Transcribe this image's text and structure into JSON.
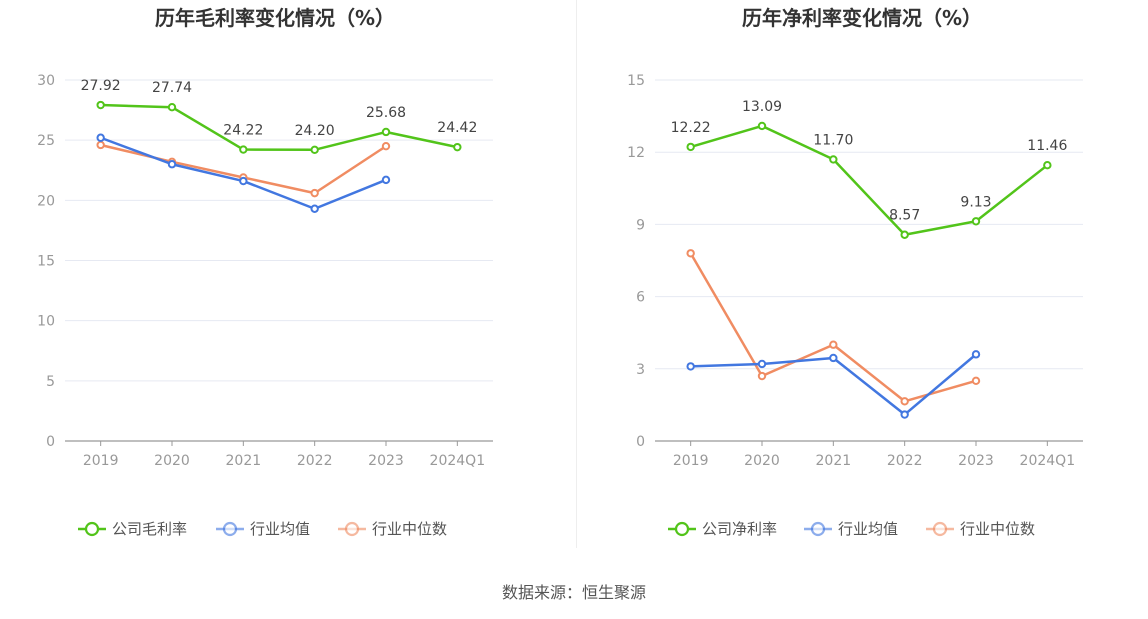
{
  "charts": [
    {
      "title": "历年毛利率变化情况（%）",
      "categories": [
        "2019",
        "2020",
        "2021",
        "2022",
        "2023",
        "2024Q1"
      ],
      "ylim": [
        0,
        30
      ],
      "yticks": [
        0,
        5,
        10,
        15,
        20,
        25,
        30
      ],
      "series": [
        {
          "name": "公司毛利率",
          "color": "#52c41a",
          "values": [
            27.92,
            27.74,
            24.22,
            24.2,
            25.68,
            24.42
          ],
          "labels": [
            "27.92",
            "27.74",
            "24.22",
            "24.20",
            "25.68",
            "24.42"
          ]
        },
        {
          "name": "行业均值",
          "color": "#4277e0",
          "values": [
            25.2,
            23.0,
            21.6,
            19.3,
            21.7,
            null
          ]
        },
        {
          "name": "行业中位数",
          "color": "#f08c62",
          "values": [
            24.6,
            23.2,
            21.9,
            20.6,
            24.5,
            null
          ]
        }
      ]
    },
    {
      "title": "历年净利率变化情况（%）",
      "categories": [
        "2019",
        "2020",
        "2021",
        "2022",
        "2023",
        "2024Q1"
      ],
      "ylim": [
        0,
        15
      ],
      "yticks": [
        0,
        3,
        6,
        9,
        12,
        15
      ],
      "series": [
        {
          "name": "公司净利率",
          "color": "#52c41a",
          "values": [
            12.22,
            13.09,
            11.7,
            8.57,
            9.13,
            11.46
          ],
          "labels": [
            "12.22",
            "13.09",
            "11.70",
            "8.57",
            "9.13",
            "11.46"
          ]
        },
        {
          "name": "行业均值",
          "color": "#4277e0",
          "values": [
            3.1,
            3.2,
            3.45,
            1.1,
            3.6,
            null
          ]
        },
        {
          "name": "行业中位数",
          "color": "#f08c62",
          "values": [
            7.8,
            2.7,
            4.0,
            1.65,
            2.5,
            null
          ]
        }
      ]
    }
  ],
  "chart_data": [
    {
      "type": "line",
      "title": "历年毛利率变化情况（%）",
      "categories": [
        "2019",
        "2020",
        "2021",
        "2022",
        "2023",
        "2024Q1"
      ],
      "ylim": [
        0,
        30
      ],
      "grid": true,
      "legend": "bottom",
      "series": [
        {
          "name": "公司毛利率",
          "values": [
            27.92,
            27.74,
            24.22,
            24.2,
            25.68,
            24.42
          ]
        },
        {
          "name": "行业均值",
          "values": [
            25.2,
            23.0,
            21.6,
            19.3,
            21.7,
            null
          ]
        },
        {
          "name": "行业中位数",
          "values": [
            24.6,
            23.2,
            21.9,
            20.6,
            24.5,
            null
          ]
        }
      ]
    },
    {
      "type": "line",
      "title": "历年净利率变化情况（%）",
      "categories": [
        "2019",
        "2020",
        "2021",
        "2022",
        "2023",
        "2024Q1"
      ],
      "ylim": [
        0,
        15
      ],
      "grid": true,
      "legend": "bottom",
      "series": [
        {
          "name": "公司净利率",
          "values": [
            12.22,
            13.09,
            11.7,
            8.57,
            9.13,
            11.46
          ]
        },
        {
          "name": "行业均值",
          "values": [
            3.1,
            3.2,
            3.45,
            1.1,
            3.6,
            null
          ]
        },
        {
          "name": "行业中位数",
          "values": [
            7.8,
            2.7,
            4.0,
            1.65,
            2.5,
            null
          ]
        }
      ]
    }
  ],
  "source": "数据来源：恒生聚源"
}
